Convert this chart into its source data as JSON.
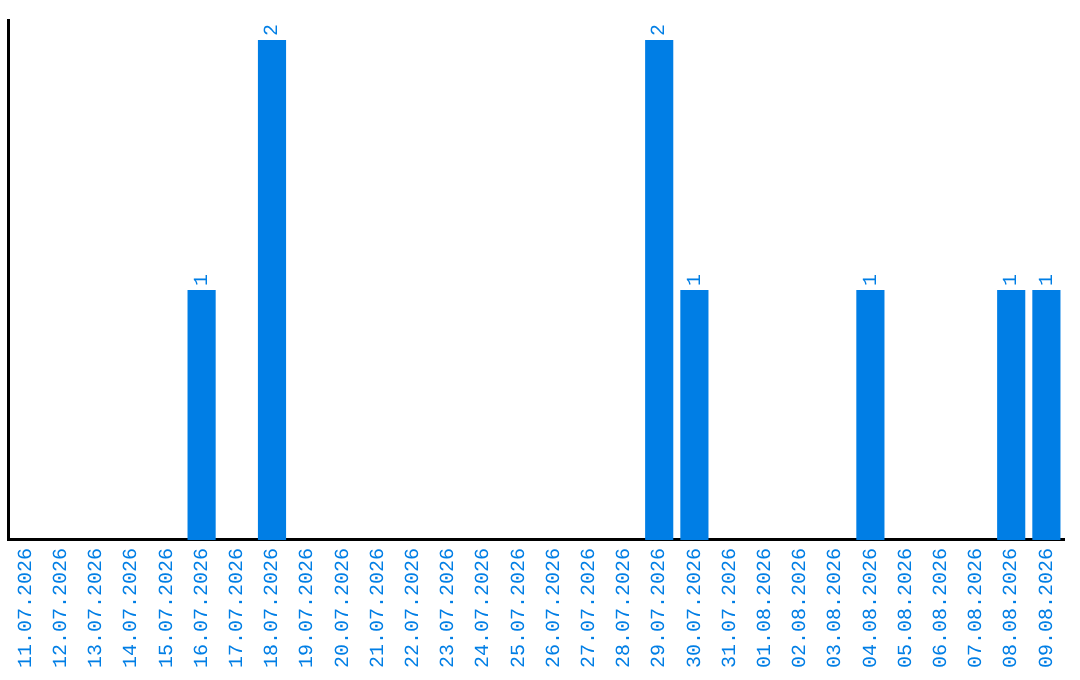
{
  "chart_data": {
    "type": "bar",
    "categories": [
      "11.07.2026",
      "12.07.2026",
      "13.07.2026",
      "14.07.2026",
      "15.07.2026",
      "16.07.2026",
      "17.07.2026",
      "18.07.2026",
      "19.07.2026",
      "20.07.2026",
      "21.07.2026",
      "22.07.2026",
      "23.07.2026",
      "24.07.2026",
      "25.07.2026",
      "26.07.2026",
      "27.07.2026",
      "28.07.2026",
      "29.07.2026",
      "30.07.2026",
      "31.07.2026",
      "01.08.2026",
      "02.08.2026",
      "03.08.2026",
      "04.08.2026",
      "05.08.2026",
      "06.08.2026",
      "07.08.2026",
      "08.08.2026",
      "09.08.2026"
    ],
    "values": [
      0,
      0,
      0,
      0,
      0,
      1,
      0,
      2,
      0,
      0,
      0,
      0,
      0,
      0,
      0,
      0,
      0,
      0,
      2,
      1,
      0,
      0,
      0,
      0,
      1,
      0,
      0,
      0,
      1,
      1
    ],
    "value_labels": [
      null,
      null,
      null,
      null,
      null,
      "1",
      null,
      "2",
      null,
      null,
      null,
      null,
      null,
      null,
      null,
      null,
      null,
      null,
      "2",
      "1",
      null,
      null,
      null,
      null,
      "1",
      null,
      null,
      null,
      "1",
      "1"
    ],
    "color": "#007ee5",
    "ylim": [
      0,
      2.08
    ],
    "grid": false,
    "legend": false,
    "tick_labels": "x"
  }
}
